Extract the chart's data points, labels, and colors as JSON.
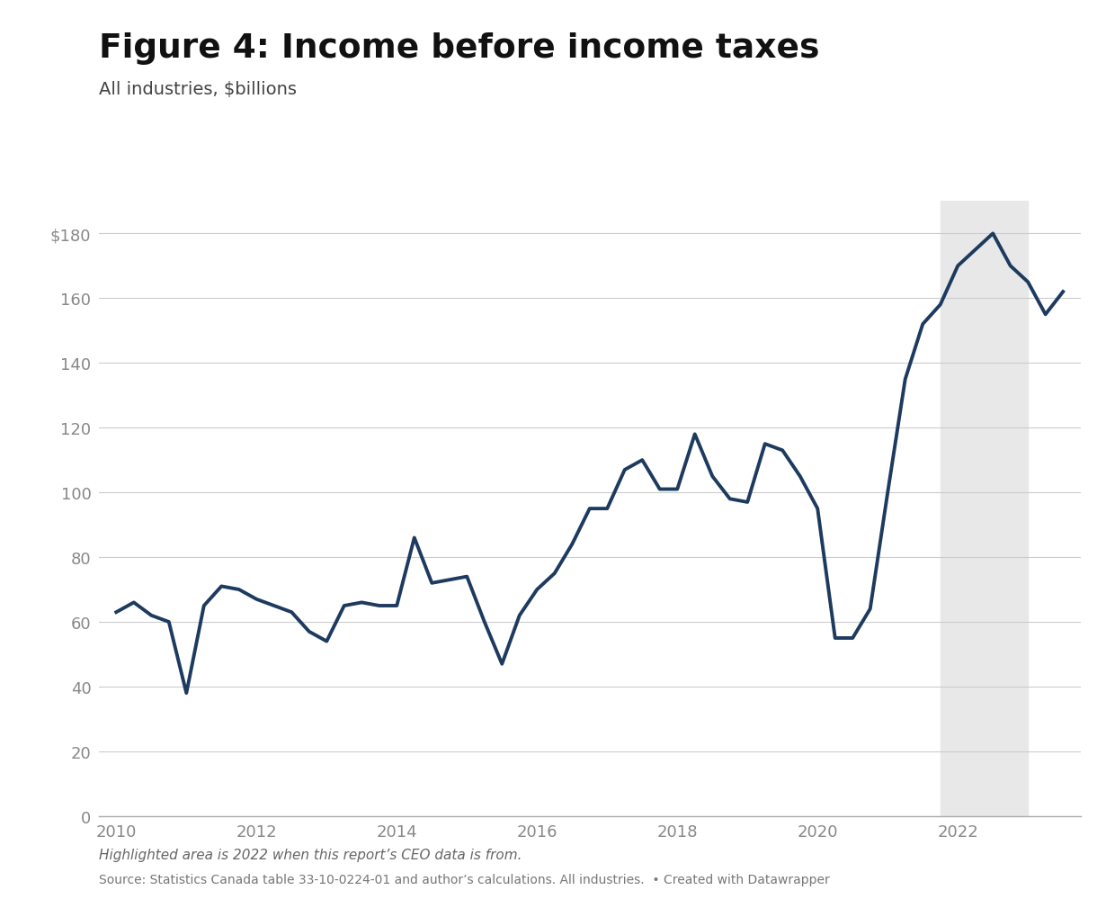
{
  "title": "Figure 4: Income before income taxes",
  "subtitle": "All industries, $billions",
  "line_color": "#1d3a5f",
  "line_width": 2.8,
  "highlight_start": 2021.75,
  "highlight_end": 2023.0,
  "highlight_color": "#e8e8e8",
  "background_color": "#ffffff",
  "yticks": [
    0,
    20,
    40,
    60,
    80,
    100,
    120,
    140,
    160,
    180
  ],
  "ylim": [
    0,
    190
  ],
  "xlim_start": 2009.75,
  "xlim_end": 2023.75,
  "xticks": [
    2010,
    2012,
    2014,
    2016,
    2018,
    2020,
    2022
  ],
  "footer_italic": "Highlighted area is 2022 when this report’s CEO data is from.",
  "footer_normal": "Source: Statistics Canada table 33-10-0224-01 and author’s calculations. All industries.  • Created with Datawrapper",
  "data": {
    "x": [
      2010.0,
      2010.25,
      2010.5,
      2010.75,
      2011.0,
      2011.25,
      2011.5,
      2011.75,
      2012.0,
      2012.25,
      2012.5,
      2012.75,
      2013.0,
      2013.25,
      2013.5,
      2013.75,
      2014.0,
      2014.25,
      2014.5,
      2014.75,
      2015.0,
      2015.25,
      2015.5,
      2015.75,
      2016.0,
      2016.25,
      2016.5,
      2016.75,
      2017.0,
      2017.25,
      2017.5,
      2017.75,
      2018.0,
      2018.25,
      2018.5,
      2018.75,
      2019.0,
      2019.25,
      2019.5,
      2019.75,
      2020.0,
      2020.25,
      2020.5,
      2020.75,
      2021.0,
      2021.25,
      2021.5,
      2021.75,
      2022.0,
      2022.25,
      2022.5,
      2022.75,
      2023.0,
      2023.25,
      2023.5
    ],
    "y": [
      63,
      66,
      62,
      60,
      38,
      65,
      71,
      70,
      67,
      65,
      63,
      57,
      54,
      65,
      66,
      65,
      65,
      86,
      72,
      73,
      74,
      60,
      47,
      62,
      70,
      75,
      84,
      95,
      95,
      107,
      110,
      101,
      101,
      118,
      105,
      98,
      97,
      115,
      113,
      105,
      95,
      55,
      55,
      64,
      100,
      135,
      152,
      158,
      170,
      175,
      180,
      170,
      165,
      155,
      162
    ]
  }
}
